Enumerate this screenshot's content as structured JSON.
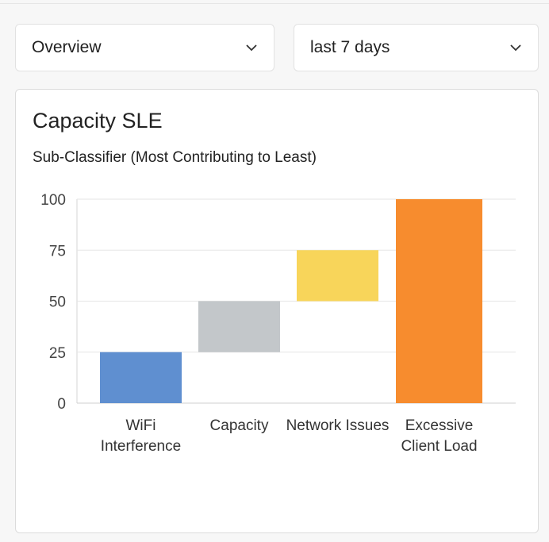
{
  "filters": {
    "view": {
      "selected": "Overview"
    },
    "range": {
      "selected": "last 7 days"
    }
  },
  "card": {
    "title": "Capacity SLE",
    "subtitle": "Sub-Classifier (Most Contributing to Least)"
  },
  "chart_data": {
    "type": "bar",
    "subtype": "waterfall",
    "categories": [
      "WiFi Interference",
      "Capacity",
      "Network Issues",
      "Excessive Client Load"
    ],
    "ranges": [
      [
        0,
        25
      ],
      [
        25,
        50
      ],
      [
        50,
        75
      ],
      [
        0,
        100
      ]
    ],
    "colors": [
      "#5f8fd0",
      "#c3c7ca",
      "#f8d55a",
      "#f78c2e"
    ],
    "yticks": [
      0,
      25,
      50,
      75,
      100
    ],
    "ylim": [
      0,
      100
    ],
    "grid": true,
    "title": "",
    "xlabel": "",
    "ylabel": ""
  }
}
